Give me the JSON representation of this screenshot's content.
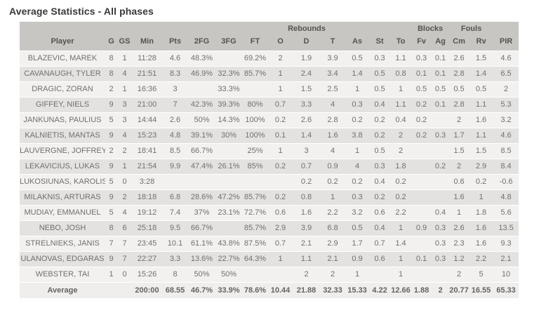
{
  "title": "Average Statistics - All phases",
  "colors": {
    "header_bg": "#c8c6c3",
    "row_light": "#f2f1ef",
    "row_dark": "#e4e2e0",
    "average_bg": "#efeeec",
    "cell_text": "#71706d",
    "header_text": "#55534f",
    "title_text": "#3a3938"
  },
  "table": {
    "group_headers": [
      {
        "label": "",
        "span": 8
      },
      {
        "label": "Rebounds",
        "span": 3
      },
      {
        "label": "",
        "span": 3
      },
      {
        "label": "Blocks",
        "span": 2
      },
      {
        "label": "Fouls",
        "span": 2
      },
      {
        "label": "",
        "span": 1
      }
    ],
    "columns": [
      "Player",
      "G",
      "GS",
      "Min",
      "Pts",
      "2FG",
      "3FG",
      "FT",
      "O",
      "D",
      "T",
      "As",
      "St",
      "To",
      "Fv",
      "Ag",
      "Cm",
      "Rv",
      "PIR"
    ],
    "rows": [
      [
        "BLAZEVIC, MAREK",
        "8",
        "1",
        "11:28",
        "4.6",
        "48.3%",
        "",
        "69.2%",
        "2",
        "1.9",
        "3.9",
        "0.5",
        "0.3",
        "1.1",
        "0.3",
        "0.1",
        "2.6",
        "1.5",
        "4.6"
      ],
      [
        "CAVANAUGH, TYLER",
        "8",
        "4",
        "21:51",
        "8.3",
        "46.9%",
        "32.3%",
        "85.7%",
        "1",
        "2.4",
        "3.4",
        "1.4",
        "0.5",
        "0.8",
        "0.1",
        "0.1",
        "2.8",
        "1.4",
        "6.5"
      ],
      [
        "DRAGIC, ZORAN",
        "2",
        "1",
        "16:36",
        "3",
        "",
        "33.3%",
        "",
        "1",
        "1.5",
        "2.5",
        "1",
        "0.5",
        "1",
        "0.5",
        "0.5",
        "0.5",
        "0.5",
        "2"
      ],
      [
        "GIFFEY, NIELS",
        "9",
        "3",
        "21:00",
        "7",
        "42.3%",
        "39.3%",
        "80%",
        "0.7",
        "3.3",
        "4",
        "0.3",
        "0.4",
        "1.1",
        "0.2",
        "0.1",
        "2.8",
        "1.1",
        "5.3"
      ],
      [
        "JANKUNAS, PAULIUS",
        "5",
        "3",
        "14:44",
        "2.6",
        "50%",
        "14.3%",
        "100%",
        "0.2",
        "2.6",
        "2.8",
        "0.2",
        "0.2",
        "0.4",
        "0.2",
        "",
        "2",
        "1.6",
        "3.2"
      ],
      [
        "KALNIETIS, MANTAS",
        "9",
        "4",
        "15:23",
        "4.8",
        "39.1%",
        "30%",
        "100%",
        "0.1",
        "1.4",
        "1.6",
        "3.8",
        "0.2",
        "2",
        "0.2",
        "0.3",
        "1.7",
        "1.1",
        "4.6"
      ],
      [
        "LAUVERGNE, JOFFREY",
        "2",
        "2",
        "18:41",
        "8.5",
        "66.7%",
        "",
        "25%",
        "1",
        "3",
        "4",
        "1",
        "0.5",
        "2",
        "",
        "",
        "1.5",
        "1.5",
        "8.5"
      ],
      [
        "LEKAVICIUS, LUKAS",
        "9",
        "1",
        "21:54",
        "9.9",
        "47.4%",
        "26.1%",
        "85%",
        "0.2",
        "0.7",
        "0.9",
        "4",
        "0.3",
        "1.8",
        "",
        "0.2",
        "2",
        "2.9",
        "8.4"
      ],
      [
        "LUKOSIUNAS, KAROLIS",
        "5",
        "0",
        "3:28",
        "",
        "",
        "",
        "",
        "",
        "0.2",
        "0.2",
        "0.2",
        "0.4",
        "0.2",
        "",
        "",
        "0.6",
        "0.2",
        "-0.6"
      ],
      [
        "MILAKNIS, ARTURAS",
        "9",
        "2",
        "18:18",
        "6.8",
        "28.6%",
        "47.2%",
        "85.7%",
        "0.2",
        "0.8",
        "1",
        "0.3",
        "0.2",
        "0.2",
        "",
        "",
        "1.6",
        "1",
        "4.8"
      ],
      [
        "MUDIAY, EMMANUEL",
        "5",
        "4",
        "19:12",
        "7.4",
        "37%",
        "23.1%",
        "72.7%",
        "0.6",
        "1.6",
        "2.2",
        "3.2",
        "0.6",
        "2.2",
        "",
        "0.4",
        "1",
        "1.8",
        "5.6"
      ],
      [
        "NEBO, JOSH",
        "8",
        "6",
        "25:18",
        "9.5",
        "66.7%",
        "",
        "85.7%",
        "2.9",
        "3.9",
        "6.8",
        "0.5",
        "0.4",
        "1",
        "0.9",
        "0.3",
        "2.6",
        "1.6",
        "13.5"
      ],
      [
        "STRELNIEKS, JANIS",
        "7",
        "7",
        "23:45",
        "10.1",
        "61.1%",
        "43.8%",
        "87.5%",
        "0.7",
        "2.1",
        "2.9",
        "1.7",
        "0.7",
        "1.4",
        "",
        "0.3",
        "2.3",
        "1.6",
        "9.3"
      ],
      [
        "ULANOVAS, EDGARAS",
        "9",
        "7",
        "22:27",
        "3.3",
        "13.6%",
        "22.7%",
        "64.3%",
        "1",
        "1.1",
        "2.1",
        "0.9",
        "0.6",
        "1",
        "0.1",
        "0.3",
        "1.2",
        "2.2",
        "2.1"
      ],
      [
        "WEBSTER, TAI",
        "1",
        "0",
        "15:26",
        "8",
        "50%",
        "50%",
        "",
        "",
        "2",
        "2",
        "1",
        "",
        "1",
        "",
        "",
        "2",
        "5",
        "10"
      ]
    ],
    "average_row": [
      "Average",
      "",
      "",
      "200:00",
      "68.55",
      "46.7%",
      "33.9%",
      "78.6%",
      "10.44",
      "21.88",
      "32.33",
      "15.33",
      "4.22",
      "12.66",
      "1.88",
      "2",
      "20.77",
      "16.55",
      "65.33"
    ]
  }
}
